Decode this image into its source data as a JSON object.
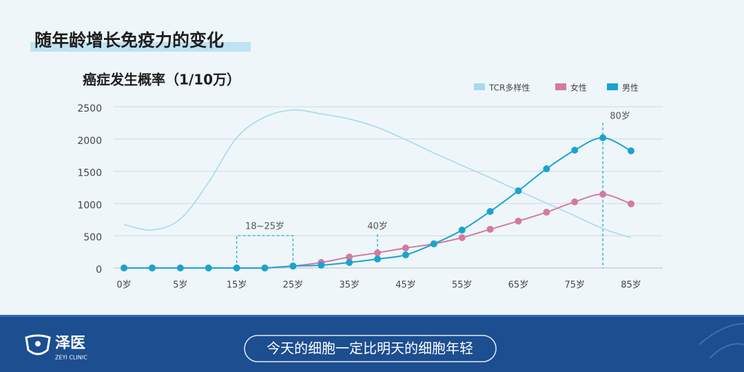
{
  "header": {
    "title": "随年龄增长免疫力的变化"
  },
  "chart_data": {
    "type": "line",
    "title": "癌症发生概率（1/10万）",
    "categories": [
      "0岁",
      null,
      "5岁",
      null,
      "15岁",
      null,
      "25岁",
      null,
      "35岁",
      null,
      "45岁",
      null,
      "55岁",
      null,
      "65岁",
      null,
      "75岁",
      null,
      "85岁"
    ],
    "series": [
      {
        "name": "TCR多样性",
        "color": "#a9d9ea",
        "markers": false,
        "values": [
          673,
          590,
          760,
          1325,
          2020,
          2340,
          2450,
          2390,
          2310,
          2180,
          1990,
          1785,
          1590,
          1400,
          1200,
          1005,
          810,
          610,
          470
        ]
      },
      {
        "name": "女性",
        "color": "#d57a9f",
        "markers": true,
        "values": [
          0,
          0,
          0,
          0,
          0,
          0,
          30,
          85,
          170,
          235,
          310,
          374,
          470,
          600,
          727,
          865,
          1025,
          1143,
          994
        ]
      },
      {
        "name": "男性",
        "color": "#1aa3cf",
        "markers": true,
        "values": [
          0,
          0,
          0,
          0,
          0,
          0,
          30,
          43,
          85,
          139,
          203,
          374,
          588,
          876,
          1197,
          1538,
          1827,
          2019,
          1816
        ]
      }
    ],
    "ylim": [
      0,
      2500
    ],
    "yticks": [
      0,
      500,
      1000,
      1500,
      2000,
      2500
    ],
    "grid": true,
    "annotations": [
      "18~25岁",
      "40岁",
      "80岁"
    ]
  },
  "footer": {
    "logo": "泽医",
    "logo_sub": "ZEYI CLINIC",
    "slogan": "今天的细胞一定比明天的细胞年轻"
  }
}
